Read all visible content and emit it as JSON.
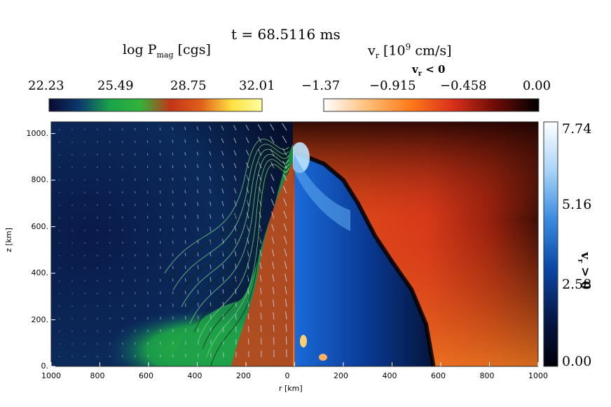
{
  "chart_data": {
    "type": "heatmap",
    "title": "t = 68.5116 ms",
    "left_panel": {
      "quantity": "log P",
      "subscript": "mag",
      "units": "[cgs]",
      "colorbar_ticks": [
        "22.23",
        "25.49",
        "28.75",
        "32.01"
      ],
      "colorbar_range": [
        22.23,
        32.01
      ],
      "colormap": [
        "#0a0a30",
        "#0b3a6e",
        "#1aa34a",
        "#33b33a",
        "#c2341a",
        "#e0601a",
        "#ffe040",
        "#ffffa0"
      ]
    },
    "right_panel": {
      "quantity_main": "v",
      "quantity_sub": "r",
      "units": "[10",
      "units_exp": "9",
      "units_end": " cm/s]",
      "negative_label_main": "v",
      "negative_label_sub": "r",
      "negative_label_end": " < 0",
      "negative_colorbar_ticks": [
        "−1.37",
        "−0.915",
        "−0.458",
        "0.00"
      ],
      "negative_range": [
        -1.37,
        0.0
      ],
      "negative_colormap": [
        "#ffffff",
        "#ffc07a",
        "#ff7a1a",
        "#d8301a",
        "#6a0c06",
        "#000000"
      ],
      "positive_label_main": "v",
      "positive_label_sub": "r",
      "positive_label_end": " > 0",
      "positive_colorbar_ticks": [
        "7.74",
        "5.16",
        "2.58",
        "0.00"
      ],
      "positive_range": [
        0.0,
        7.74
      ],
      "positive_colormap": [
        "#000008",
        "#06184a",
        "#0a48a6",
        "#3a8ae0",
        "#a8d4f8",
        "#ffffff"
      ]
    },
    "x_axis": {
      "label": "r [km]",
      "ticks": [
        "1000",
        "800",
        "600",
        "400",
        "200",
        "0",
        "200",
        "400",
        "600",
        "800",
        "1000"
      ],
      "range": [
        -1000,
        1000
      ]
    },
    "y_axis": {
      "label": "z [km]",
      "ticks": [
        "0.",
        "200.",
        "400.",
        "600.",
        "800.",
        "1000."
      ],
      "range": [
        0,
        1050
      ]
    },
    "shock_front_r_km": [
      [
        0,
        920
      ],
      [
        120,
        870
      ],
      [
        200,
        800
      ],
      [
        260,
        700
      ],
      [
        330,
        560
      ],
      [
        400,
        450
      ],
      [
        480,
        330
      ],
      [
        540,
        180
      ],
      [
        570,
        0
      ]
    ]
  }
}
